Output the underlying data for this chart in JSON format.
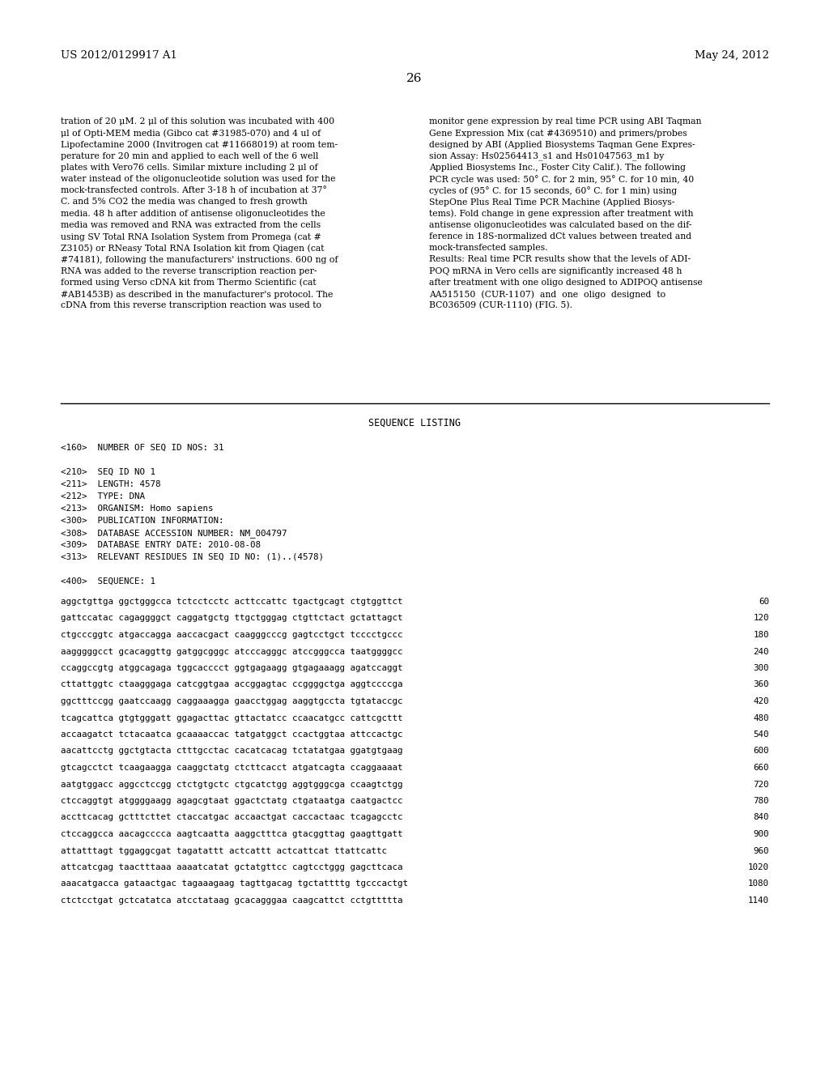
{
  "background_color": "#ffffff",
  "header_left": "US 2012/0129917 A1",
  "header_right": "May 24, 2012",
  "page_number": "26",
  "col1_body": "tration of 20 μM. 2 μl of this solution was incubated with 400\nμl of Opti-MEM media (Gibco cat #31985-070) and 4 ul of\nLipofectamine 2000 (Invitrogen cat #11668019) at room tem-\nperature for 20 min and applied to each well of the 6 well\nplates with Vero76 cells. Similar mixture including 2 μl of\nwater instead of the oligonucleotide solution was used for the\nmock-transfected controls. After 3-18 h of incubation at 37°\nC. and 5% CO2 the media was changed to fresh growth\nmedia. 48 h after addition of antisense oligonucleotides the\nmedia was removed and RNA was extracted from the cells\nusing SV Total RNA Isolation System from Promega (cat #\nZ3105) or RNeasy Total RNA Isolation kit from Qiagen (cat\n#74181), following the manufacturers' instructions. 600 ng of\nRNA was added to the reverse transcription reaction per-\nformed using Verso cDNA kit from Thermo Scientific (cat\n#AB1453B) as described in the manufacturer's protocol. The\ncDNA from this reverse transcription reaction was used to",
  "col2_body": "monitor gene expression by real time PCR using ABI Taqman\nGene Expression Mix (cat #4369510) and primers/probes\ndesigned by ABI (Applied Biosystems Taqman Gene Expres-\nsion Assay: Hs02564413_s1 and Hs01047563_m1 by\nApplied Biosystems Inc., Foster City Calif.). The following\nPCR cycle was used: 50° C. for 2 min, 95° C. for 10 min, 40\ncycles of (95° C. for 15 seconds, 60° C. for 1 min) using\nStepOne Plus Real Time PCR Machine (Applied Biosys-\ntems). Fold change in gene expression after treatment with\nantisense oligonucleotides was calculated based on the dif-\nference in 18S-normalized dCt values between treated and\nmock-transfected samples.\nResults: Real time PCR results show that the levels of ADI-\nPOQ mRNA in Vero cells are significantly increased 48 h\nafter treatment with one oligo designed to ADIPOQ antisense\nAA515150  (CUR-1107)  and  one  oligo  designed  to\nBC036509 (CUR-1110) (FIG. 5).",
  "seq_title": "SEQUENCE LISTING",
  "seq_metadata": "<160>  NUMBER OF SEQ ID NOS: 31\n\n<210>  SEQ ID NO 1\n<211>  LENGTH: 4578\n<212>  TYPE: DNA\n<213>  ORGANISM: Homo sapiens\n<300>  PUBLICATION INFORMATION:\n<308>  DATABASE ACCESSION NUMBER: NM_004797\n<309>  DATABASE ENTRY DATE: 2010-08-08\n<313>  RELEVANT RESIDUES IN SEQ ID NO: (1)..(4578)\n\n<400>  SEQUENCE: 1",
  "seq_lines": [
    [
      "aggctgttga ggctgggcca tctcctcctc acttccattc tgactgcagt ctgtggttct",
      "60"
    ],
    [
      "gattccatac cagaggggct caggatgctg ttgctgggag ctgttctact gctattagct",
      "120"
    ],
    [
      "ctgcccggtc atgaccagga aaccacgact caagggcccg gagtcctgct tcccctgccc",
      "180"
    ],
    [
      "aagggggcct gcacaggttg gatggcgggc atcccagggc atccgggcca taatggggcc",
      "240"
    ],
    [
      "ccaggccgtg atggcagaga tggcacccct ggtgagaagg gtgagaaagg agatccaggt",
      "300"
    ],
    [
      "cttattggtc ctaagggaga catcggtgaa accggagtac ccggggctga aggtccccga",
      "360"
    ],
    [
      "ggctttccgg gaatccaagg caggaaagga gaacctggag aaggtgccta tgtataccgc",
      "420"
    ],
    [
      "tcagcattca gtgtgggatt ggagacttac gttactatcc ccaacatgcc cattcgcttt",
      "480"
    ],
    [
      "accaagatct tctacaatca gcaaaaccac tatgatggct ccactggtaa attccactgc",
      "540"
    ],
    [
      "aacattcctg ggctgtacta ctttgcctac cacatcacag tctatatgaa ggatgtgaag",
      "600"
    ],
    [
      "gtcagcctct tcaagaagga caaggctatg ctcttcacct atgatcagta ccaggaaaat",
      "660"
    ],
    [
      "aatgtggacc aggcctccgg ctctgtgctc ctgcatctgg aggtgggcga ccaagtctgg",
      "720"
    ],
    [
      "ctccaggtgt atggggaagg agagcgtaat ggactctatg ctgataatga caatgactcc",
      "780"
    ],
    [
      "accttcacag gctttcttet ctaccatgac accaactgat caccactaac tcagagcctc",
      "840"
    ],
    [
      "ctccaggcca aacagcccca aagtcaatta aaggctttca gtacggttag gaagttgatt",
      "900"
    ],
    [
      "attatttagt tggaggcgat tagatattt actcattt actcattcat ttattcattc",
      "960"
    ],
    [
      "attcatcgag taactttaaa aaaatcatat gctatgttcc cagtcctggg gagcttcaca",
      "1020"
    ],
    [
      "aaacatgacca gataactgac tagaaagaag tagttgacag tgctattttg tgcccactgt",
      "1080"
    ],
    [
      "ctctcctgat gctcatatca atcctataag gcacagggaa caagcattct cctgttttta",
      "1140"
    ]
  ]
}
